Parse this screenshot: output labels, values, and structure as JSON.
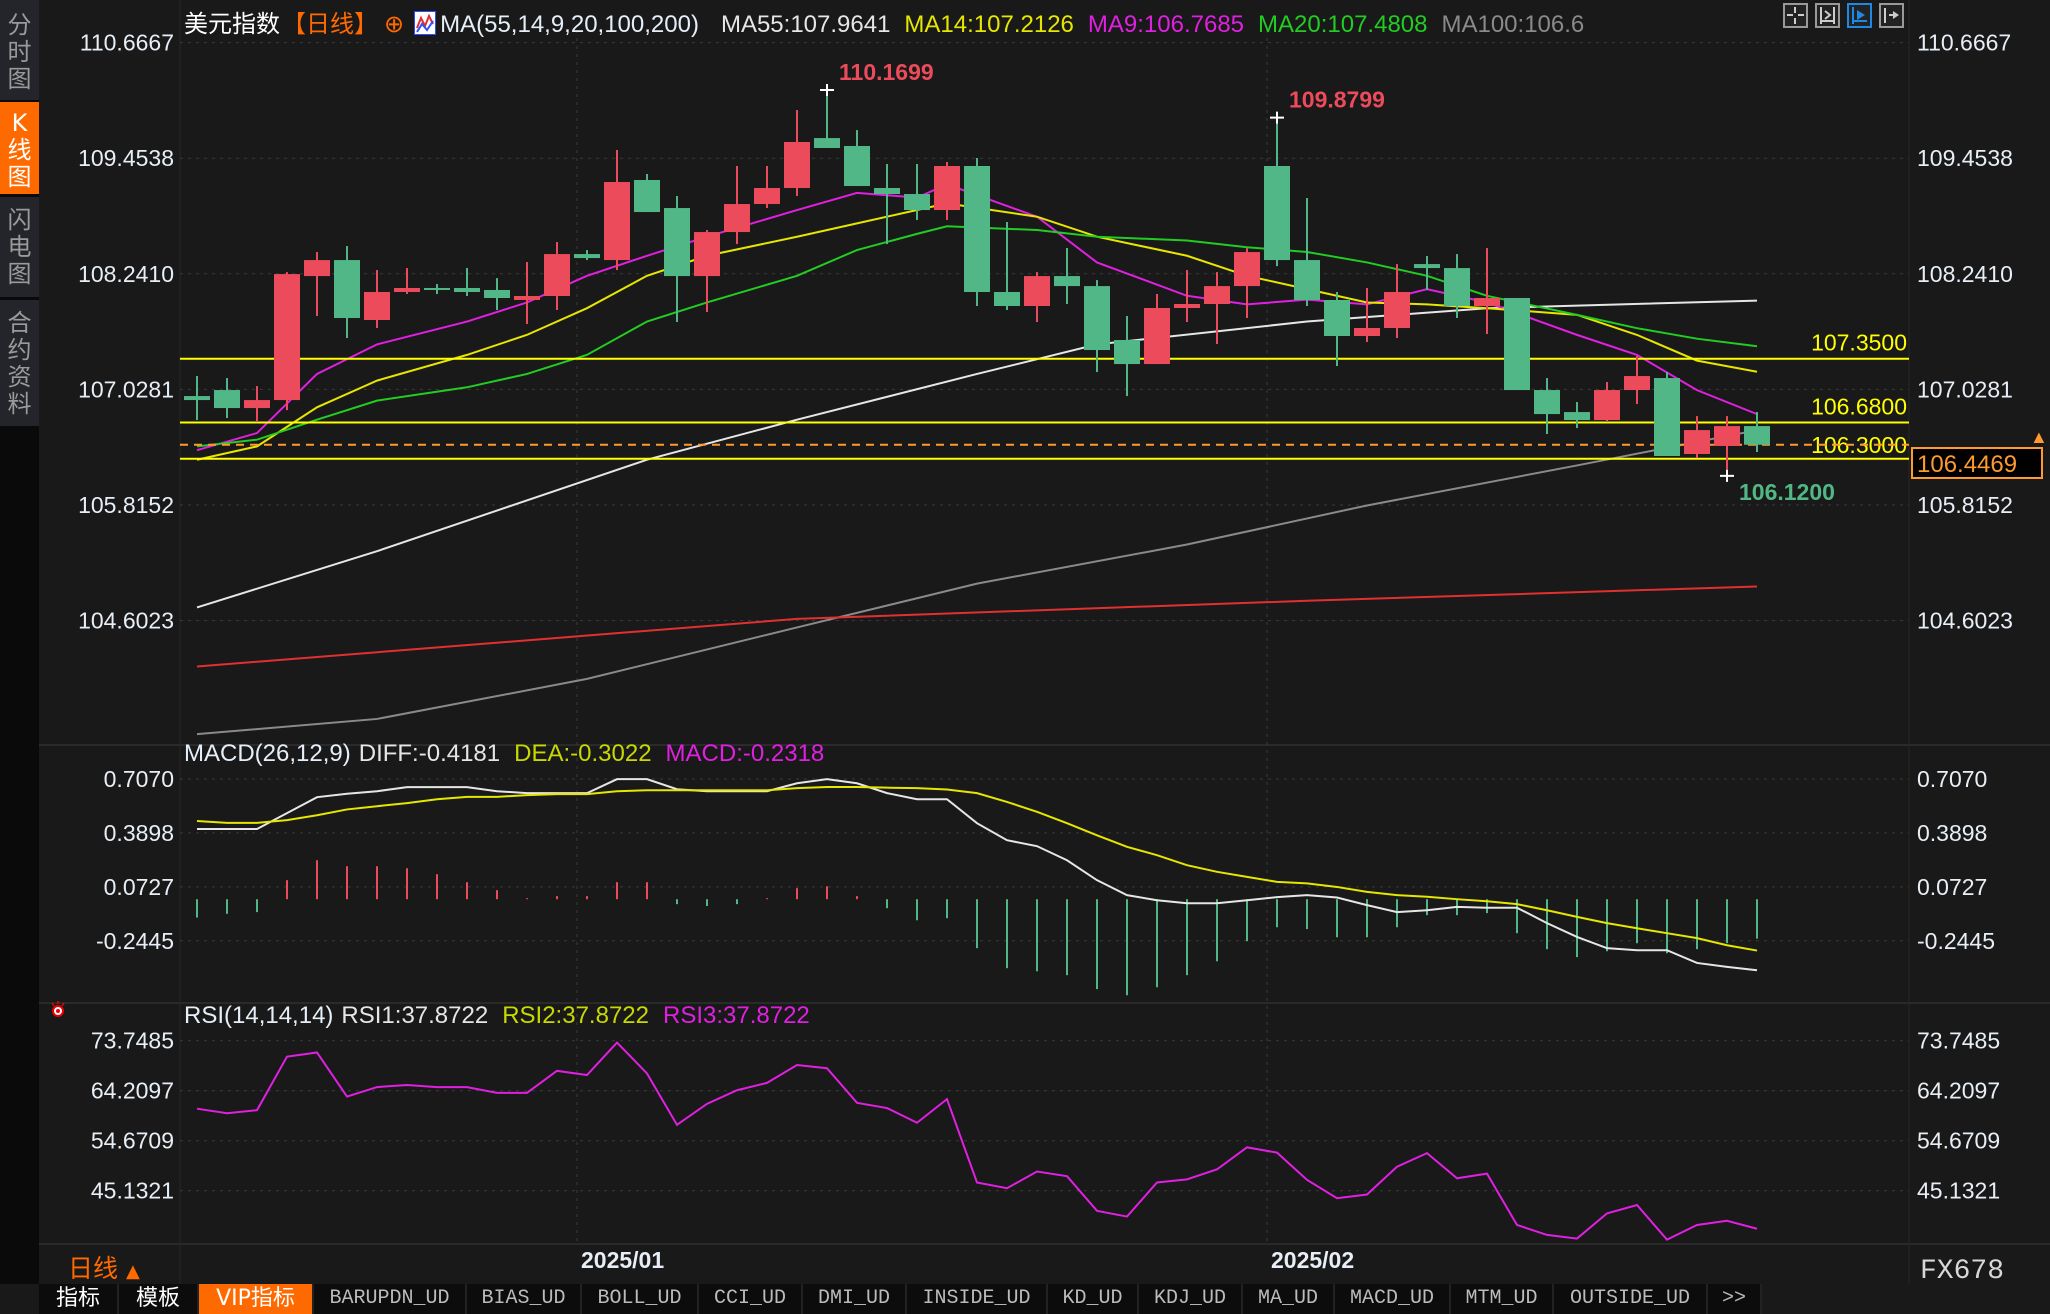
{
  "sidebar": {
    "items": [
      {
        "label": "分时图",
        "active": false
      },
      {
        "label": "K线图",
        "active": true
      },
      {
        "label": "闪电图",
        "active": false
      },
      {
        "label": "合约资料",
        "active": false
      }
    ]
  },
  "header": {
    "title": "美元指数",
    "period": "【日线】",
    "ma_params": "MA(55,14,9,20,100,200)",
    "ma_values": [
      {
        "label": "MA55:107.9641",
        "color": "#e6e6e6"
      },
      {
        "label": "MA14:107.2126",
        "color": "#e6e600"
      },
      {
        "label": "MA9:106.7685",
        "color": "#e020e0"
      },
      {
        "label": "MA20:107.4808",
        "color": "#22cc22"
      },
      {
        "label": "MA100:106.6",
        "color": "#8a8a8a"
      }
    ],
    "toolbar_icons": [
      "crosshair-icon",
      "range-select-icon",
      "scroll-right-icon",
      "jump-to-end-icon"
    ]
  },
  "colors": {
    "up": "#eb4b5a",
    "down": "#52b786",
    "background": "#191919",
    "accent": "#ff6a00"
  },
  "chart_data": [
    {
      "type": "candlestick",
      "price_ticks": [
        "110.6667",
        "109.4538",
        "108.2410",
        "107.0281",
        "105.8152",
        "104.6023"
      ],
      "ohlc": [
        [
          106.958,
          107.168,
          106.706,
          106.916
        ],
        [
          107.021,
          107.147,
          106.727,
          106.832
        ],
        [
          106.832,
          107.063,
          106.685,
          106.916
        ],
        [
          106.916,
          108.259,
          106.811,
          108.238
        ],
        [
          108.217,
          108.469,
          107.798,
          108.385
        ],
        [
          108.385,
          108.532,
          107.567,
          107.777
        ],
        [
          107.756,
          108.28,
          107.672,
          108.05
        ],
        [
          108.05,
          108.301,
          108.029,
          108.092
        ],
        [
          108.092,
          108.133,
          108.029,
          108.071
        ],
        [
          108.092,
          108.301,
          108.008,
          108.05
        ],
        [
          108.071,
          108.196,
          107.861,
          107.987
        ],
        [
          107.966,
          108.364,
          107.714,
          108.008
        ],
        [
          108.008,
          108.574,
          107.861,
          108.448
        ],
        [
          108.448,
          108.49,
          108.385,
          108.406
        ],
        [
          108.385,
          109.54,
          108.28,
          109.204
        ],
        [
          109.225,
          109.288,
          108.889,
          108.889
        ],
        [
          108.931,
          109.057,
          107.735,
          108.217
        ],
        [
          108.217,
          108.7,
          107.84,
          108.679
        ],
        [
          108.679,
          109.372,
          108.553,
          108.973
        ],
        [
          108.973,
          109.372,
          108.931,
          109.141
        ],
        [
          109.141,
          109.959,
          109.057,
          109.624
        ],
        [
          109.665,
          110.1699,
          109.561,
          109.561
        ],
        [
          109.582,
          109.749,
          109.162,
          109.162
        ],
        [
          109.141,
          109.393,
          108.553,
          109.078
        ],
        [
          109.078,
          109.393,
          108.805,
          108.91
        ],
        [
          108.91,
          109.414,
          108.805,
          109.372
        ],
        [
          109.372,
          109.456,
          107.903,
          108.05
        ],
        [
          108.05,
          108.784,
          107.861,
          107.903
        ],
        [
          107.903,
          108.259,
          107.735,
          108.217
        ],
        [
          108.217,
          108.511,
          107.924,
          108.112
        ],
        [
          108.112,
          108.175,
          107.21,
          107.441
        ],
        [
          107.546,
          107.798,
          106.958,
          107.294
        ],
        [
          107.294,
          108.029,
          107.294,
          107.882
        ],
        [
          107.882,
          108.28,
          107.735,
          107.924
        ],
        [
          107.924,
          108.259,
          107.504,
          108.112
        ],
        [
          108.112,
          108.511,
          107.777,
          108.469
        ],
        [
          109.372,
          109.8799,
          108.322,
          108.385
        ],
        [
          108.385,
          109.036,
          107.903,
          107.966
        ],
        [
          107.966,
          108.05,
          107.273,
          107.588
        ],
        [
          107.588,
          108.092,
          107.525,
          107.672
        ],
        [
          107.672,
          108.343,
          107.567,
          108.05
        ],
        [
          108.343,
          108.427,
          108.071,
          108.301
        ],
        [
          108.301,
          108.448,
          107.777,
          107.903
        ],
        [
          107.903,
          108.511,
          107.609,
          107.987
        ],
        [
          107.987,
          107.987,
          107.021,
          107.021
        ],
        [
          107.021,
          107.147,
          106.56,
          106.769
        ],
        [
          106.79,
          106.895,
          106.622,
          106.706
        ],
        [
          106.706,
          107.105,
          106.685,
          107.021
        ],
        [
          107.021,
          107.378,
          106.874,
          107.168
        ],
        [
          107.147,
          107.21,
          106.329,
          106.329
        ],
        [
          106.35,
          106.748,
          106.308,
          106.601
        ],
        [
          106.434,
          106.748,
          106.12,
          106.643
        ],
        [
          106.643,
          106.79,
          106.371,
          106.4469
        ]
      ],
      "ma_lines": [
        {
          "name": "MA55",
          "color": "#e6e6e6",
          "points": [
            [
              0,
              104.74
            ],
            [
              6,
              105.33
            ],
            [
              15,
              106.29
            ],
            [
              20,
              106.71
            ],
            [
              26,
              107.19
            ],
            [
              30,
              107.5
            ],
            [
              37,
              107.74
            ],
            [
              43,
              107.88
            ],
            [
              52,
              107.96
            ]
          ]
        },
        {
          "name": "MA100",
          "color": "#8a8a8a",
          "points": [
            [
              0,
              103.41
            ],
            [
              6,
              103.57
            ],
            [
              13,
              103.99
            ],
            [
              20,
              104.53
            ],
            [
              26,
              104.99
            ],
            [
              33,
              105.4
            ],
            [
              39,
              105.81
            ],
            [
              46,
              106.23
            ],
            [
              52,
              106.6
            ]
          ]
        },
        {
          "name": "MA200",
          "color": "#e03030",
          "points": [
            [
              0,
              104.12
            ],
            [
              20,
              104.62
            ],
            [
              37,
              104.81
            ],
            [
              52,
              104.96
            ]
          ]
        },
        {
          "name": "MA9",
          "color": "#e020e0",
          "points": [
            [
              0,
              106.39
            ],
            [
              2,
              106.57
            ],
            [
              4,
              107.19
            ],
            [
              6,
              107.5
            ],
            [
              9,
              107.74
            ],
            [
              11,
              107.94
            ],
            [
              13,
              108.22
            ],
            [
              15,
              108.43
            ],
            [
              17,
              108.63
            ],
            [
              20,
              108.91
            ],
            [
              22,
              109.09
            ],
            [
              24,
              109.04
            ],
            [
              25,
              109.18
            ],
            [
              28,
              108.84
            ],
            [
              30,
              108.36
            ],
            [
              33,
              108.01
            ],
            [
              35,
              107.92
            ],
            [
              37,
              107.97
            ],
            [
              39,
              107.92
            ],
            [
              41,
              108.08
            ],
            [
              43,
              107.94
            ],
            [
              46,
              107.6
            ],
            [
              48,
              107.39
            ],
            [
              50,
              107.02
            ],
            [
              52,
              106.7685
            ]
          ]
        },
        {
          "name": "MA14",
          "color": "#e6e600",
          "points": [
            [
              0,
              106.29
            ],
            [
              2,
              106.43
            ],
            [
              4,
              106.84
            ],
            [
              6,
              107.12
            ],
            [
              9,
              107.39
            ],
            [
              11,
              107.6
            ],
            [
              13,
              107.88
            ],
            [
              15,
              108.22
            ],
            [
              17,
              108.43
            ],
            [
              20,
              108.63
            ],
            [
              22,
              108.77
            ],
            [
              24,
              108.91
            ],
            [
              25,
              108.98
            ],
            [
              28,
              108.84
            ],
            [
              30,
              108.63
            ],
            [
              33,
              108.43
            ],
            [
              35,
              108.22
            ],
            [
              37,
              108.08
            ],
            [
              39,
              107.94
            ],
            [
              41,
              107.92
            ],
            [
              43,
              107.88
            ],
            [
              46,
              107.81
            ],
            [
              48,
              107.6
            ],
            [
              50,
              107.33
            ],
            [
              52,
              107.2126
            ]
          ]
        },
        {
          "name": "MA20",
          "color": "#22cc22",
          "points": [
            [
              0,
              106.43
            ],
            [
              2,
              106.5
            ],
            [
              4,
              106.71
            ],
            [
              6,
              106.91
            ],
            [
              9,
              107.05
            ],
            [
              11,
              107.19
            ],
            [
              13,
              107.39
            ],
            [
              15,
              107.74
            ],
            [
              17,
              107.94
            ],
            [
              20,
              108.22
            ],
            [
              22,
              108.49
            ],
            [
              24,
              108.66
            ],
            [
              25,
              108.74
            ],
            [
              28,
              108.7
            ],
            [
              30,
              108.63
            ],
            [
              33,
              108.59
            ],
            [
              35,
              108.52
            ],
            [
              37,
              108.47
            ],
            [
              39,
              108.36
            ],
            [
              41,
              108.22
            ],
            [
              43,
              108.01
            ],
            [
              46,
              107.81
            ],
            [
              48,
              107.67
            ],
            [
              50,
              107.56
            ],
            [
              52,
              107.4808
            ]
          ]
        }
      ],
      "levels": [
        {
          "value": 107.35,
          "label": "107.3500",
          "color": "#ffff00"
        },
        {
          "value": 106.68,
          "label": "106.6800",
          "color": "#ffff00"
        },
        {
          "value": 106.3,
          "label": "106.3000",
          "color": "#ffff00"
        }
      ],
      "last_price": {
        "value": 106.4469,
        "label": "106.4469",
        "color": "#ff9a2e"
      },
      "annotations": [
        {
          "index": 21,
          "value": 110.1699,
          "label": "110.1699",
          "kind": "high",
          "color": "#eb4b5a"
        },
        {
          "index": 36,
          "value": 109.8799,
          "label": "109.8799",
          "kind": "high",
          "color": "#eb4b5a"
        },
        {
          "index": 51,
          "value": 106.12,
          "label": "106.1200",
          "kind": "low",
          "color": "#52b786"
        }
      ]
    },
    {
      "type": "macd",
      "title": "MACD(26,12,9)",
      "legend": [
        {
          "label": "DIFF:-0.4181",
          "color": "#e6e6e6"
        },
        {
          "label": "DEA:-0.3022",
          "color": "#e6e600"
        },
        {
          "label": "MACD:-0.2318",
          "color": "#e020e0"
        }
      ],
      "ticks": [
        "0.7070",
        "0.3898",
        "0.0727",
        "-0.2445"
      ],
      "diff": [
        0.413,
        0.413,
        0.413,
        0.506,
        0.6,
        0.62,
        0.635,
        0.659,
        0.659,
        0.659,
        0.635,
        0.624,
        0.624,
        0.624,
        0.706,
        0.706,
        0.647,
        0.635,
        0.635,
        0.635,
        0.682,
        0.706,
        0.682,
        0.624,
        0.588,
        0.588,
        0.447,
        0.347,
        0.312,
        0.229,
        0.112,
        0.024,
        -0.006,
        -0.024,
        -0.024,
        -0.006,
        0.012,
        0.024,
        0.01,
        -0.035,
        -0.076,
        -0.065,
        -0.045,
        -0.05,
        -0.05,
        -0.141,
        -0.222,
        -0.288,
        -0.3,
        -0.3,
        -0.375,
        -0.398,
        -0.4181
      ],
      "dea": [
        0.46,
        0.449,
        0.449,
        0.465,
        0.494,
        0.528,
        0.547,
        0.565,
        0.588,
        0.602,
        0.602,
        0.612,
        0.618,
        0.618,
        0.635,
        0.641,
        0.641,
        0.641,
        0.641,
        0.641,
        0.653,
        0.66,
        0.66,
        0.656,
        0.653,
        0.645,
        0.624,
        0.572,
        0.514,
        0.447,
        0.376,
        0.308,
        0.259,
        0.2,
        0.161,
        0.131,
        0.102,
        0.093,
        0.072,
        0.043,
        0.024,
        0.014,
        0.0,
        -0.012,
        -0.029,
        -0.065,
        -0.104,
        -0.141,
        -0.171,
        -0.2,
        -0.229,
        -0.271,
        -0.3022
      ],
      "macd": [
        -0.108,
        -0.086,
        -0.076,
        0.112,
        0.229,
        0.194,
        0.194,
        0.182,
        0.147,
        0.1,
        0.053,
        0.006,
        0.018,
        0.018,
        0.1,
        0.1,
        -0.029,
        -0.04,
        -0.029,
        0.006,
        0.065,
        0.076,
        0.018,
        -0.053,
        -0.124,
        -0.112,
        -0.288,
        -0.406,
        -0.424,
        -0.447,
        -0.529,
        -0.565,
        -0.518,
        -0.447,
        -0.365,
        -0.247,
        -0.165,
        -0.176,
        -0.224,
        -0.224,
        -0.165,
        -0.094,
        -0.094,
        -0.082,
        -0.2,
        -0.294,
        -0.341,
        -0.306,
        -0.259,
        -0.318,
        -0.294,
        -0.259,
        -0.2318
      ]
    },
    {
      "type": "line",
      "title": "RSI(14,14,14)",
      "legend": [
        {
          "label": "RSI1:37.8722",
          "color": "#e6e6e6"
        },
        {
          "label": "RSI2:37.8722",
          "color": "#e6e600"
        },
        {
          "label": "RSI3:37.8722",
          "color": "#e020e0"
        }
      ],
      "ticks": [
        "73.7485",
        "64.2097",
        "54.6709",
        "45.1321"
      ],
      "rsi": [
        60.78,
        59.9,
        60.5,
        70.7,
        71.5,
        63.1,
        64.9,
        65.3,
        64.9,
        64.9,
        63.8,
        63.8,
        68.0,
        67.2,
        73.4,
        67.5,
        57.7,
        61.7,
        64.3,
        65.7,
        69.1,
        68.5,
        61.9,
        60.9,
        58.1,
        62.6,
        46.7,
        45.6,
        48.8,
        47.9,
        41.3,
        40.2,
        46.7,
        47.3,
        49.2,
        53.4,
        52.4,
        47.2,
        43.7,
        44.4,
        49.7,
        52.3,
        47.5,
        48.4,
        38.6,
        36.7,
        36.0,
        40.8,
        42.4,
        35.8,
        38.6,
        39.4,
        37.8722
      ]
    }
  ],
  "date_axis": [
    {
      "label": "2025/01",
      "index": 13
    },
    {
      "label": "2025/02",
      "index": 36
    }
  ],
  "footer": {
    "period_label": "日线",
    "period_arrow": "▲",
    "watermark": "FX678",
    "tabs": [
      {
        "label": "指标",
        "cn": true
      },
      {
        "label": "模板",
        "cn": true
      },
      {
        "label": "VIP指标",
        "cn": true,
        "active": true
      },
      {
        "label": "BARUPDN_UD"
      },
      {
        "label": "BIAS_UD"
      },
      {
        "label": "BOLL_UD"
      },
      {
        "label": "CCI_UD"
      },
      {
        "label": "DMI_UD"
      },
      {
        "label": "INSIDE_UD"
      },
      {
        "label": "KD_UD"
      },
      {
        "label": "KDJ_UD"
      },
      {
        "label": "MA_UD"
      },
      {
        "label": "MACD_UD"
      },
      {
        "label": "MTM_UD"
      },
      {
        "label": "OUTSIDE_UD"
      },
      {
        "label": ">>"
      }
    ]
  }
}
